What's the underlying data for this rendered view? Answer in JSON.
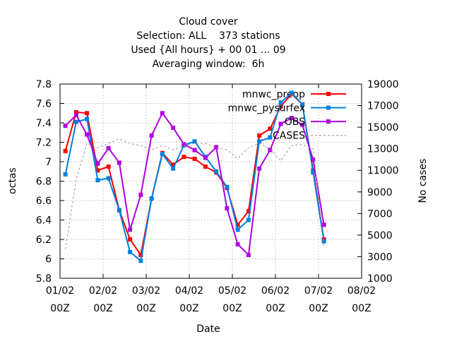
{
  "chart_data": {
    "type": "line",
    "title": "Cloud cover",
    "subtitle": [
      "Selection: ALL    373 stations",
      "Used {All hours} + 00 01 ... 09",
      "Averaging window:  6h"
    ],
    "xlabel": "Date",
    "ylabel": "octas",
    "y2label": "No cases",
    "x": [
      3,
      9,
      15,
      21,
      27,
      33,
      39,
      45,
      51,
      57,
      63,
      69,
      75,
      81,
      87,
      93,
      99,
      105,
      111,
      117,
      123,
      129,
      135,
      141,
      147
    ],
    "series": [
      {
        "name": "mnwc_preop",
        "color": "#ff0000",
        "marker": "square",
        "values": [
          7.11,
          7.51,
          7.5,
          6.91,
          6.95,
          6.5,
          6.2,
          6.04,
          6.62,
          7.09,
          6.97,
          7.05,
          7.03,
          6.95,
          6.89,
          6.73,
          6.35,
          6.49,
          7.27,
          7.34,
          7.57,
          7.7,
          7.59,
          6.91,
          6.2
        ]
      },
      {
        "name": "mnwc_pysurfex",
        "color": "#0080e0",
        "marker": "square",
        "values": [
          6.87,
          7.41,
          7.44,
          6.81,
          6.83,
          6.5,
          6.07,
          5.98,
          6.62,
          7.08,
          6.93,
          7.17,
          7.21,
          7.05,
          6.9,
          6.74,
          6.3,
          6.4,
          7.21,
          7.25,
          7.61,
          7.71,
          7.59,
          6.89,
          6.18
        ]
      },
      {
        "name": "OBS",
        "color": "#b000e0",
        "marker": "square",
        "values": [
          7.37,
          7.48,
          7.28,
          6.98,
          7.14,
          6.99,
          6.3,
          6.66,
          7.27,
          7.5,
          7.35,
          7.18,
          7.12,
          7.04,
          7.15,
          6.52,
          6.15,
          6.04,
          6.93,
          7.12,
          7.39,
          7.45,
          7.38,
          7.02,
          6.35
        ]
      },
      {
        "name": "CASES",
        "color": "#999999",
        "axis": "y2",
        "line_style": "dashed",
        "values": [
          3700,
          10200,
          13500,
          13100,
          13500,
          13900,
          13500,
          13300,
          12900,
          13300,
          12900,
          13300,
          13500,
          13500,
          13100,
          12900,
          12100,
          13100,
          13500,
          13000,
          11900,
          13300,
          13400,
          13000,
          3900
        ]
      }
    ],
    "xlim": [
      0,
      168
    ],
    "xticks": [
      {
        "value": 0,
        "label": "01/02 00Z"
      },
      {
        "value": 24,
        "label": "02/02 00Z"
      },
      {
        "value": 48,
        "label": "03/02 00Z"
      },
      {
        "value": 72,
        "label": "04/02 00Z"
      },
      {
        "value": 96,
        "label": "05/02 00Z"
      },
      {
        "value": 120,
        "label": "06/02 00Z"
      },
      {
        "value": 144,
        "label": "07/02 00Z"
      },
      {
        "value": 168,
        "label": "08/02 00Z"
      }
    ],
    "ylim": [
      5.8,
      7.8
    ],
    "yticks": [
      5.8,
      6,
      6.2,
      6.4,
      6.6,
      6.8,
      7,
      7.2,
      7.4,
      7.6,
      7.8
    ],
    "y2lim": [
      1000,
      19000
    ],
    "y2ticks": [
      1000,
      3000,
      5000,
      7000,
      9000,
      11000,
      13000,
      15000,
      17000,
      19000
    ],
    "grid": true,
    "legend": "top-right"
  }
}
